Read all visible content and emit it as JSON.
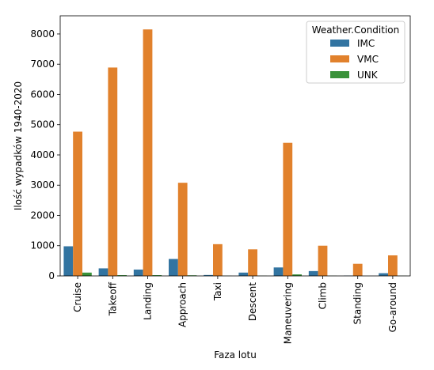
{
  "chart_data": {
    "type": "bar",
    "xlabel": "Faza lotu",
    "ylabel": "Ilość wypadków 1940-2020",
    "ylim": [
      0,
      8600
    ],
    "yticks": [
      0,
      1000,
      2000,
      3000,
      4000,
      5000,
      6000,
      7000,
      8000
    ],
    "grid": false,
    "legend_title": "Weather.Condition",
    "legend_position": "top-right",
    "categories": [
      "Cruise",
      "Takeoff",
      "Landing",
      "Approach",
      "Taxi",
      "Descent",
      "Maneuvering",
      "Climb",
      "Standing",
      "Go-around"
    ],
    "series": [
      {
        "name": "IMC",
        "color": "#3274a1",
        "values": [
          980,
          250,
          210,
          560,
          30,
          110,
          280,
          160,
          10,
          90
        ]
      },
      {
        "name": "VMC",
        "color": "#e1812c",
        "values": [
          4770,
          6890,
          8150,
          3080,
          1050,
          880,
          4400,
          1000,
          400,
          680
        ]
      },
      {
        "name": "UNK",
        "color": "#3a923a",
        "values": [
          110,
          25,
          25,
          20,
          5,
          5,
          50,
          5,
          0,
          5
        ]
      }
    ]
  }
}
